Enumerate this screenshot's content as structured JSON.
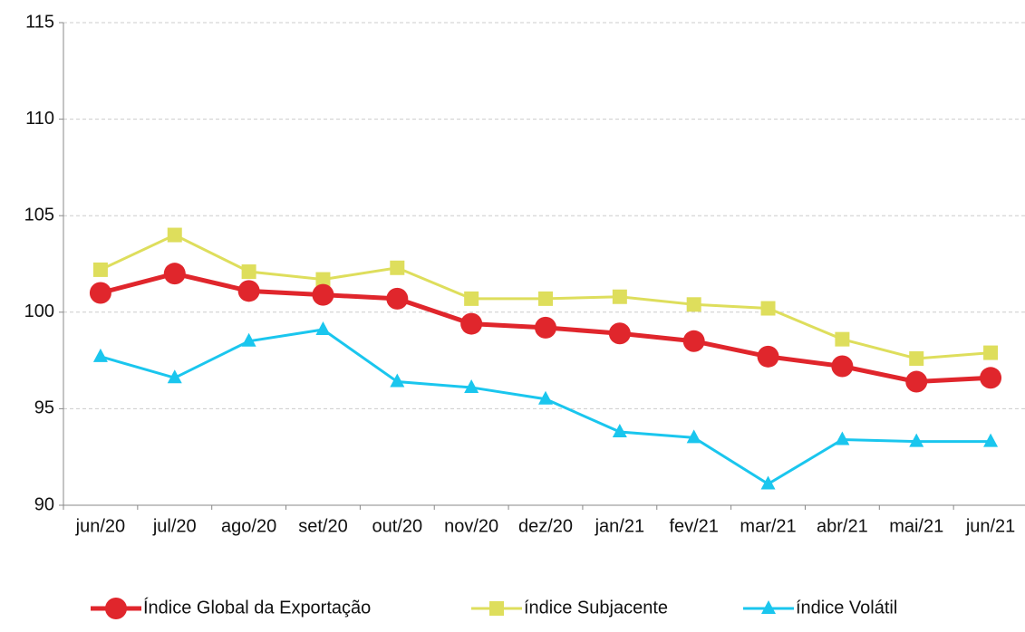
{
  "chart_data": {
    "type": "line",
    "categories": [
      "jun/20",
      "jul/20",
      "ago/20",
      "set/20",
      "out/20",
      "nov/20",
      "dez/20",
      "jan/21",
      "fev/21",
      "mar/21",
      "abr/21",
      "mai/21",
      "jun/21"
    ],
    "series": [
      {
        "name": "Índice Global da Exportação",
        "color": "#e0262c",
        "marker": "circle",
        "values": [
          101.0,
          102.0,
          101.1,
          100.9,
          100.7,
          99.4,
          99.2,
          98.9,
          98.5,
          97.7,
          97.2,
          96.4,
          96.6
        ]
      },
      {
        "name": "índice Subjacente",
        "color": "#dede5c",
        "marker": "square",
        "values": [
          102.2,
          104.0,
          102.1,
          101.7,
          102.3,
          100.7,
          100.7,
          100.8,
          100.4,
          100.2,
          98.6,
          97.6,
          97.9
        ]
      },
      {
        "name": "índice Volátil",
        "color": "#1ac6ee",
        "marker": "triangle",
        "values": [
          97.7,
          96.6,
          98.5,
          99.1,
          96.4,
          96.1,
          95.5,
          93.8,
          93.5,
          91.1,
          93.4,
          93.3,
          93.3
        ]
      }
    ],
    "ylim": [
      90,
      115
    ],
    "yticks": [
      90,
      95,
      100,
      105,
      110,
      115
    ],
    "grid": true,
    "legend": "bottom"
  }
}
